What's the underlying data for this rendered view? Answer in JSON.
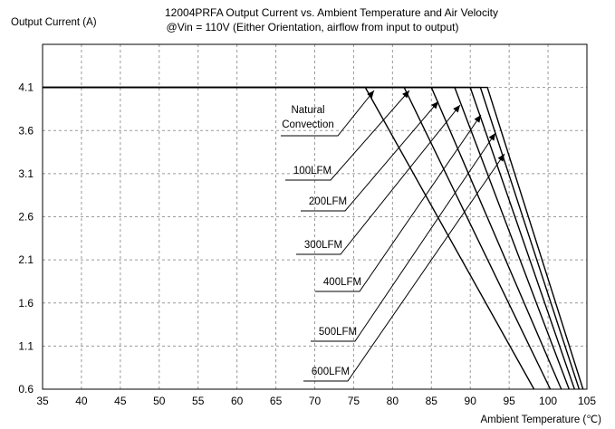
{
  "chart_data": {
    "type": "line",
    "title": "12004PRFA Output Current vs. Ambient Temperature and Air Velocity",
    "subtitle": "@Vin = 110V (Either Orientation, airflow from input to output)",
    "ylabel": "Output Current (A)",
    "xlabel": "Ambient Temperature (℃)",
    "xlim": [
      35,
      105
    ],
    "ylim": [
      0.6,
      4.6
    ],
    "x_ticks": [
      35,
      40,
      45,
      50,
      55,
      60,
      65,
      70,
      75,
      80,
      85,
      90,
      95,
      100,
      105
    ],
    "y_ticks": [
      0.6,
      1.1,
      1.6,
      2.1,
      2.6,
      3.1,
      3.6,
      4.1
    ],
    "y_tick_labels": [
      "0.6",
      "1.1",
      "1.6",
      "2.1",
      "2.6",
      "3.1",
      "3.6",
      "4.1"
    ],
    "grid": true,
    "series": [
      {
        "name": "Natural Convection",
        "points": [
          [
            35,
            4.1
          ],
          [
            76.5,
            4.1
          ],
          [
            98.2,
            0.6
          ]
        ]
      },
      {
        "name": "100LFM",
        "points": [
          [
            35,
            4.1
          ],
          [
            81.5,
            4.1
          ],
          [
            100.3,
            0.6
          ]
        ]
      },
      {
        "name": "200LFM",
        "points": [
          [
            35,
            4.1
          ],
          [
            85,
            4.1
          ],
          [
            101.7,
            0.6
          ]
        ]
      },
      {
        "name": "300LFM",
        "points": [
          [
            35,
            4.1
          ],
          [
            88,
            4.1
          ],
          [
            102.7,
            0.6
          ]
        ]
      },
      {
        "name": "400LFM",
        "points": [
          [
            35,
            4.1
          ],
          [
            90,
            4.1
          ],
          [
            103.4,
            0.6
          ]
        ]
      },
      {
        "name": "500LFM",
        "points": [
          [
            35,
            4.1
          ],
          [
            91.3,
            4.1
          ],
          [
            104,
            0.6
          ]
        ]
      },
      {
        "name": "600LFM",
        "points": [
          [
            35,
            4.1
          ],
          [
            92.2,
            4.1
          ],
          [
            104.5,
            0.6
          ]
        ]
      }
    ],
    "annotations": [
      {
        "series": "Natural Convection",
        "lines": [
          "Natural",
          "Convection"
        ]
      },
      {
        "series": "100LFM",
        "lines": [
          "100LFM"
        ]
      },
      {
        "series": "200LFM",
        "lines": [
          "200LFM"
        ]
      },
      {
        "series": "300LFM",
        "lines": [
          "300LFM"
        ]
      },
      {
        "series": "400LFM",
        "lines": [
          "400LFM"
        ]
      },
      {
        "series": "500LFM",
        "lines": [
          "500LFM"
        ]
      },
      {
        "series": "600LFM",
        "lines": [
          "600LFM"
        ]
      }
    ]
  }
}
